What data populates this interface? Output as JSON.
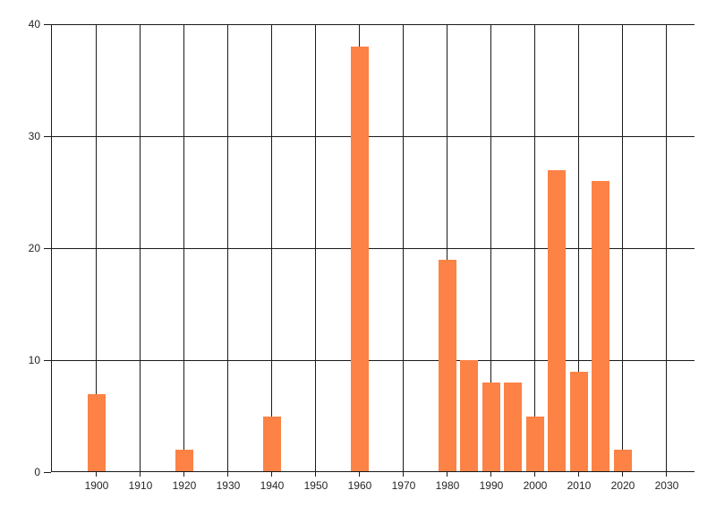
{
  "chart_data": {
    "type": "bar",
    "title": "",
    "xlabel": "",
    "ylabel": "",
    "x": [
      1900,
      1920,
      1940,
      1960,
      1980,
      1985,
      1990,
      1995,
      2000,
      2005,
      2010,
      2015,
      2020
    ],
    "values": [
      7,
      2,
      5,
      38,
      19,
      10,
      8,
      8,
      5,
      27,
      9,
      26,
      2
    ],
    "x_ticks": [
      1900,
      1910,
      1920,
      1930,
      1940,
      1950,
      1960,
      1970,
      1980,
      1990,
      2000,
      2010,
      2020,
      2030
    ],
    "y_ticks": [
      0,
      10,
      20,
      30,
      40
    ],
    "xlim": [
      1890,
      2036
    ],
    "ylim": [
      0,
      40
    ],
    "grid": "both",
    "legend": "none",
    "bar_color": "#FC8245",
    "axis_color": "#1b1b1b",
    "tick_label_color": "#262626"
  }
}
